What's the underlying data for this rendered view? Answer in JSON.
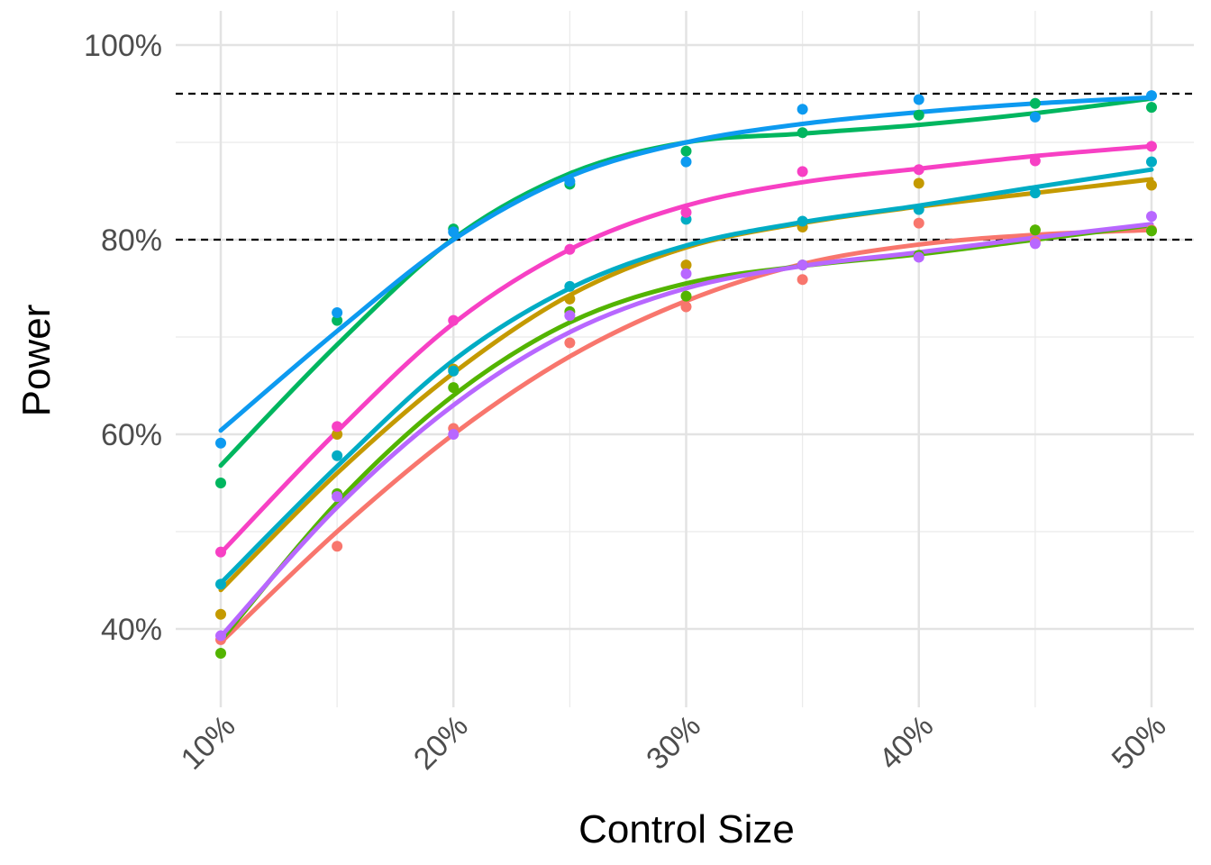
{
  "chart_data": {
    "type": "line",
    "title": "",
    "xlabel": "Control Size",
    "ylabel": "Power",
    "x": [
      10,
      15,
      20,
      25,
      30,
      35,
      40,
      45,
      50
    ],
    "x_ticks": [
      10,
      20,
      30,
      40,
      50
    ],
    "x_tick_labels": [
      "10%",
      "20%",
      "30%",
      "40%",
      "50%"
    ],
    "xlim": [
      8,
      52
    ],
    "y_ticks": [
      40,
      60,
      80,
      100
    ],
    "y_tick_labels": [
      "40%",
      "60%",
      "80%",
      "100%"
    ],
    "ylim": [
      32,
      102
    ],
    "grid": true,
    "legend": "none",
    "reference_lines": [
      {
        "axis": "y",
        "value": 80,
        "style": "dashed",
        "color": "#000000"
      },
      {
        "axis": "y",
        "value": 95,
        "style": "dashed",
        "color": "#000000"
      }
    ],
    "series": [
      {
        "color": "#F8766D",
        "points": [
          38.9,
          48.5,
          60.6,
          69.4,
          73.1,
          75.9,
          81.7,
          79.8,
          81.0
        ],
        "curve": [
          38.6,
          50.0,
          60.0,
          68.0,
          73.7,
          77.5,
          79.5,
          80.5,
          81.0
        ]
      },
      {
        "color": "#C49A00",
        "points": [
          41.5,
          60.0,
          66.7,
          73.9,
          77.4,
          81.3,
          85.8,
          81.0,
          85.6
        ],
        "curve": [
          44.0,
          56.0,
          66.3,
          74.3,
          79.2,
          81.7,
          83.4,
          84.8,
          86.2
        ]
      },
      {
        "color": "#53B400",
        "points": [
          37.5,
          53.9,
          64.8,
          72.6,
          74.2,
          77.4,
          78.4,
          81.0,
          80.9
        ],
        "curve": [
          38.8,
          53.0,
          64.0,
          71.5,
          75.5,
          77.3,
          78.5,
          80.0,
          81.5
        ]
      },
      {
        "color": "#00B65F",
        "points": [
          55.0,
          71.7,
          81.1,
          85.7,
          89.1,
          91.0,
          92.8,
          94.0,
          93.6
        ],
        "curve": [
          56.8,
          69.2,
          80.1,
          86.8,
          90.0,
          90.9,
          91.8,
          93.0,
          94.5
        ]
      },
      {
        "color": "#00ACC4",
        "points": [
          44.6,
          57.8,
          66.5,
          75.2,
          82.1,
          81.9,
          83.1,
          84.8,
          88.0
        ],
        "curve": [
          44.7,
          56.7,
          67.6,
          75.0,
          79.4,
          81.8,
          83.5,
          85.4,
          87.2
        ]
      },
      {
        "color": "#0D9AF0",
        "points": [
          59.1,
          72.5,
          80.8,
          86.0,
          88.0,
          93.4,
          94.4,
          92.6,
          94.8
        ],
        "curve": [
          60.4,
          70.6,
          80.0,
          86.5,
          90.0,
          91.9,
          93.1,
          94.0,
          94.6
        ]
      },
      {
        "color": "#B867FF",
        "points": [
          39.3,
          53.6,
          60.0,
          72.2,
          76.5,
          77.4,
          78.2,
          79.6,
          82.4
        ],
        "curve": [
          39.2,
          52.5,
          63.0,
          70.5,
          75.0,
          77.3,
          78.7,
          80.2,
          81.6
        ]
      },
      {
        "color": "#F740C4",
        "points": [
          47.9,
          60.8,
          71.7,
          79.0,
          82.8,
          87.0,
          87.2,
          88.1,
          89.6
        ],
        "curve": [
          47.8,
          60.3,
          71.4,
          79.0,
          83.5,
          85.9,
          87.3,
          88.6,
          89.6
        ]
      }
    ]
  }
}
